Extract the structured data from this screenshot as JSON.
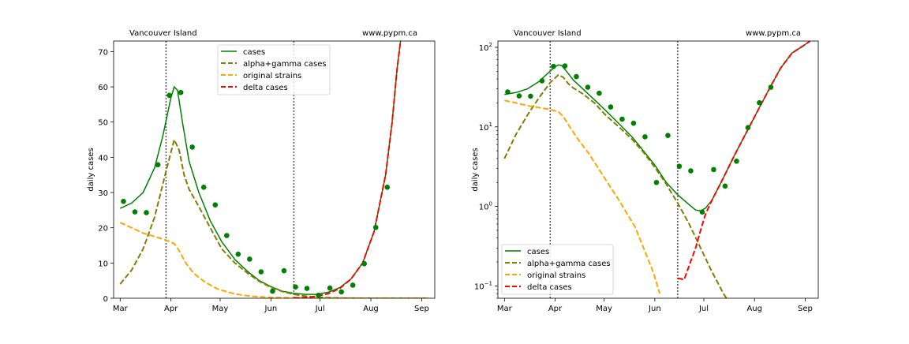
{
  "chart_data": [
    {
      "type": "line",
      "yscale": "linear",
      "title_left": "Vancouver Island",
      "title_right": "www.pypm.ca",
      "ylabel": "daily cases",
      "xlabel": "",
      "ylim": [
        0,
        73
      ],
      "yticks": [
        0,
        10,
        20,
        30,
        40,
        50,
        60,
        70
      ],
      "ytick_labels": [
        "0",
        "10",
        "20",
        "30",
        "40",
        "50",
        "60",
        "70"
      ],
      "xlim": [
        "2021-02-25",
        "2021-09-09"
      ],
      "xticks": [
        "2021-03-01",
        "2021-04-01",
        "2021-05-01",
        "2021-06-01",
        "2021-07-01",
        "2021-08-01",
        "2021-09-01"
      ],
      "xtick_labels": [
        "Mar",
        "Apr",
        "May",
        "Jun",
        "Jul",
        "Aug",
        "Sep"
      ],
      "vlines": [
        "2021-03-29",
        "2021-06-15"
      ],
      "grid": false,
      "legend_position": "upper-center",
      "series": [
        {
          "name": "cases",
          "style": "solid",
          "color": "#008000",
          "x": [
            "2021-03-01",
            "2021-03-08",
            "2021-03-15",
            "2021-03-22",
            "2021-03-27",
            "2021-04-01",
            "2021-04-03",
            "2021-04-05",
            "2021-04-08",
            "2021-04-12",
            "2021-04-18",
            "2021-04-25",
            "2021-05-02",
            "2021-05-10",
            "2021-05-18",
            "2021-05-25",
            "2021-06-01",
            "2021-06-08",
            "2021-06-15",
            "2021-06-22",
            "2021-06-29",
            "2021-07-06",
            "2021-07-13",
            "2021-07-20",
            "2021-07-27",
            "2021-08-03",
            "2021-08-10",
            "2021-08-14",
            "2021-08-17",
            "2021-08-21"
          ],
          "y": [
            25.5,
            27,
            30,
            37,
            46,
            57,
            60,
            59,
            50,
            39,
            30,
            22,
            16,
            11,
            7.5,
            5,
            3.3,
            2,
            1.4,
            1.1,
            1.1,
            1.7,
            3,
            5.5,
            10,
            19,
            35,
            50,
            65,
            80
          ]
        },
        {
          "name": "alpha+gamma cases",
          "style": "dashed",
          "color": "#808000",
          "x": [
            "2021-03-01",
            "2021-03-08",
            "2021-03-15",
            "2021-03-22",
            "2021-03-29",
            "2021-04-03",
            "2021-04-06",
            "2021-04-09",
            "2021-04-12",
            "2021-04-18",
            "2021-04-25",
            "2021-05-02",
            "2021-05-10",
            "2021-05-18",
            "2021-05-25",
            "2021-06-01",
            "2021-06-08",
            "2021-06-15",
            "2021-06-22",
            "2021-06-29",
            "2021-07-06",
            "2021-07-13",
            "2021-07-20",
            "2021-08-01",
            "2021-08-15",
            "2021-09-05"
          ],
          "y": [
            4,
            8,
            14,
            23,
            36,
            45,
            42,
            35,
            31,
            26,
            20,
            14,
            10,
            7,
            4.8,
            3.1,
            1.9,
            1.1,
            0.6,
            0.3,
            0.15,
            0.06,
            0.03,
            0.01,
            0,
            0
          ]
        },
        {
          "name": "original strains",
          "style": "dashed",
          "color": "#FFA500",
          "x": [
            "2021-03-01",
            "2021-03-08",
            "2021-03-15",
            "2021-03-22",
            "2021-03-29",
            "2021-04-03",
            "2021-04-06",
            "2021-04-10",
            "2021-04-15",
            "2021-04-22",
            "2021-04-30",
            "2021-05-10",
            "2021-05-20",
            "2021-05-31",
            "2021-06-15",
            "2021-07-01",
            "2021-08-01",
            "2021-09-05"
          ],
          "y": [
            21.5,
            20,
            18.5,
            17.5,
            16.5,
            15.5,
            13.5,
            10,
            7,
            4.5,
            2.5,
            1.2,
            0.55,
            0.25,
            0.1,
            0.05,
            0.01,
            0
          ]
        },
        {
          "name": "delta cases",
          "style": "dashed",
          "color": "#FF0000",
          "x": [
            "2021-06-15",
            "2021-06-19",
            "2021-06-22",
            "2021-06-26",
            "2021-06-29",
            "2021-07-02",
            "2021-07-06",
            "2021-07-13",
            "2021-07-20",
            "2021-07-27",
            "2021-08-03",
            "2021-08-10",
            "2021-08-14",
            "2021-08-17",
            "2021-08-21"
          ],
          "y": [
            0.12,
            0.12,
            0.2,
            0.35,
            0.6,
            0.9,
            1.3,
            2.8,
            5.5,
            10,
            19,
            35,
            50,
            65,
            80
          ]
        }
      ],
      "observations": {
        "name": "data",
        "color": "#008000",
        "x": [
          "2021-03-03",
          "2021-03-10",
          "2021-03-17",
          "2021-03-24",
          "2021-03-31",
          "2021-04-07",
          "2021-04-14",
          "2021-04-21",
          "2021-04-28",
          "2021-05-05",
          "2021-05-12",
          "2021-05-19",
          "2021-05-26",
          "2021-06-02",
          "2021-06-09",
          "2021-06-16",
          "2021-06-23",
          "2021-06-30",
          "2021-07-07",
          "2021-07-14",
          "2021-07-21",
          "2021-07-28",
          "2021-08-04",
          "2021-08-11"
        ],
        "y": [
          27.5,
          24.5,
          24.3,
          37.9,
          57.6,
          58.4,
          42.9,
          31.5,
          26.5,
          17.8,
          12.5,
          11.1,
          7.5,
          2.0,
          7.8,
          3.2,
          2.8,
          0.85,
          2.9,
          1.8,
          3.7,
          9.8,
          20.1,
          31.5
        ]
      }
    },
    {
      "type": "line",
      "yscale": "log",
      "title_left": "Vancouver Island",
      "title_right": "www.pypm.ca",
      "ylabel": "daily cases",
      "xlabel": "",
      "ylim": [
        0.07,
        120
      ],
      "yticks": [
        0.1,
        1,
        10,
        100
      ],
      "ytick_labels": [
        [
          "10",
          "−1"
        ],
        [
          "10",
          "0"
        ],
        [
          "10",
          "1"
        ],
        [
          "10",
          "2"
        ]
      ],
      "xlim": [
        "2021-02-25",
        "2021-09-09"
      ],
      "xticks": [
        "2021-03-01",
        "2021-04-01",
        "2021-05-01",
        "2021-06-01",
        "2021-07-01",
        "2021-08-01",
        "2021-09-01"
      ],
      "xtick_labels": [
        "Mar",
        "Apr",
        "May",
        "Jun",
        "Jul",
        "Aug",
        "Sep"
      ],
      "vlines": [
        "2021-03-29",
        "2021-06-15"
      ],
      "grid": false,
      "legend_position": "lower-left",
      "series": [
        {
          "name": "cases",
          "style": "solid",
          "color": "#008000",
          "x": [
            "2021-03-01",
            "2021-03-08",
            "2021-03-15",
            "2021-03-22",
            "2021-03-27",
            "2021-04-01",
            "2021-04-03",
            "2021-04-05",
            "2021-04-08",
            "2021-04-12",
            "2021-04-18",
            "2021-04-25",
            "2021-05-02",
            "2021-05-10",
            "2021-05-18",
            "2021-05-25",
            "2021-06-01",
            "2021-06-08",
            "2021-06-15",
            "2021-06-22",
            "2021-06-26",
            "2021-06-29",
            "2021-07-02",
            "2021-07-06",
            "2021-07-13",
            "2021-07-20",
            "2021-07-27",
            "2021-08-03",
            "2021-08-10",
            "2021-08-17",
            "2021-08-24",
            "2021-08-31",
            "2021-09-04"
          ],
          "y": [
            25.5,
            27,
            30,
            37,
            46,
            57,
            60,
            59,
            50,
            39,
            30,
            22,
            16,
            11,
            7.5,
            5,
            3.3,
            2,
            1.4,
            1.05,
            0.9,
            0.88,
            0.95,
            1.2,
            2.3,
            4.5,
            8.5,
            16,
            30,
            55,
            85,
            105,
            120
          ]
        },
        {
          "name": "alpha+gamma cases",
          "style": "dashed",
          "color": "#808000",
          "x": [
            "2021-03-01",
            "2021-03-08",
            "2021-03-15",
            "2021-03-22",
            "2021-03-29",
            "2021-04-03",
            "2021-04-06",
            "2021-04-09",
            "2021-04-12",
            "2021-04-18",
            "2021-04-25",
            "2021-05-02",
            "2021-05-10",
            "2021-05-18",
            "2021-05-25",
            "2021-06-01",
            "2021-06-08",
            "2021-06-15",
            "2021-06-22",
            "2021-06-29",
            "2021-07-06",
            "2021-07-13",
            "2021-07-17"
          ],
          "y": [
            4,
            8,
            14,
            23,
            36,
            45,
            42,
            35,
            31,
            26,
            20,
            14,
            10,
            7,
            4.8,
            3.1,
            1.9,
            1.1,
            0.6,
            0.3,
            0.15,
            0.08,
            0.06
          ]
        },
        {
          "name": "original strains",
          "style": "dashed",
          "color": "#FFA500",
          "x": [
            "2021-03-01",
            "2021-03-08",
            "2021-03-15",
            "2021-03-22",
            "2021-03-29",
            "2021-04-03",
            "2021-04-06",
            "2021-04-10",
            "2021-04-15",
            "2021-04-22",
            "2021-04-30",
            "2021-05-10",
            "2021-05-20",
            "2021-05-31",
            "2021-06-04"
          ],
          "y": [
            21.5,
            20,
            18.5,
            17.5,
            16.5,
            15.5,
            13.5,
            10,
            7,
            4.5,
            2.5,
            1.2,
            0.55,
            0.15,
            0.08
          ]
        },
        {
          "name": "delta cases",
          "style": "dashed",
          "color": "#FF0000",
          "x": [
            "2021-06-15",
            "2021-06-19",
            "2021-06-22",
            "2021-06-26",
            "2021-06-29",
            "2021-07-02",
            "2021-07-06",
            "2021-07-13",
            "2021-07-20",
            "2021-07-27",
            "2021-08-03",
            "2021-08-10",
            "2021-08-17",
            "2021-08-24",
            "2021-08-31",
            "2021-09-04"
          ],
          "y": [
            0.125,
            0.12,
            0.18,
            0.3,
            0.5,
            0.8,
            1.2,
            2.3,
            4.5,
            8.5,
            16,
            30,
            55,
            85,
            105,
            120
          ]
        }
      ],
      "observations": {
        "name": "data",
        "color": "#008000",
        "x": [
          "2021-03-03",
          "2021-03-10",
          "2021-03-17",
          "2021-03-24",
          "2021-03-31",
          "2021-04-07",
          "2021-04-14",
          "2021-04-21",
          "2021-04-28",
          "2021-05-05",
          "2021-05-12",
          "2021-05-19",
          "2021-05-26",
          "2021-06-02",
          "2021-06-09",
          "2021-06-16",
          "2021-06-23",
          "2021-06-30",
          "2021-07-07",
          "2021-07-14",
          "2021-07-21",
          "2021-07-28",
          "2021-08-04",
          "2021-08-11"
        ],
        "y": [
          27.5,
          24.5,
          24.3,
          37.9,
          57.6,
          58.4,
          42.9,
          31.5,
          26.5,
          17.8,
          12.5,
          11.1,
          7.5,
          2.0,
          7.8,
          3.2,
          2.8,
          0.85,
          2.9,
          1.8,
          3.7,
          9.8,
          20.1,
          31.5
        ]
      }
    }
  ]
}
